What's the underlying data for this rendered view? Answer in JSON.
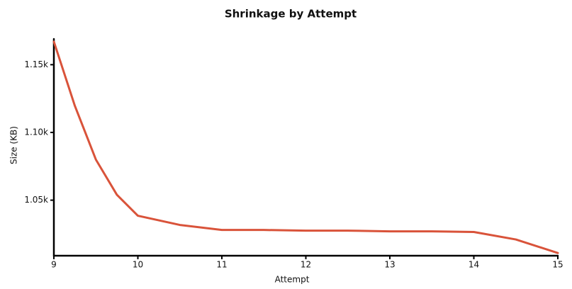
{
  "chart_data": {
    "type": "line",
    "title": "Shrinkage by Attempt",
    "x_label": "Attempt",
    "y_label": "Size (KB)",
    "x": [
      9,
      9.25,
      9.5,
      9.75,
      10,
      10.5,
      11,
      11.5,
      12,
      12.5,
      13,
      13.5,
      14,
      14.5,
      15
    ],
    "series": [
      {
        "name": "Size",
        "color": "#d9533a",
        "values": [
          1167,
          1119.6,
          1080,
          1054,
          1038.5,
          1031.7,
          1028,
          1028,
          1027.5,
          1027.5,
          1027,
          1027,
          1026.5,
          1021,
          1011
        ]
      }
    ],
    "xlim": [
      9,
      15
    ],
    "xticks": [
      9,
      10,
      11,
      12,
      13,
      14,
      15
    ],
    "ylim": [
      1009,
      1169
    ],
    "yticks": [
      {
        "value": 1050,
        "label": "1.05k"
      },
      {
        "value": 1100,
        "label": "1.10k"
      },
      {
        "value": 1150,
        "label": "1.15k"
      }
    ]
  }
}
